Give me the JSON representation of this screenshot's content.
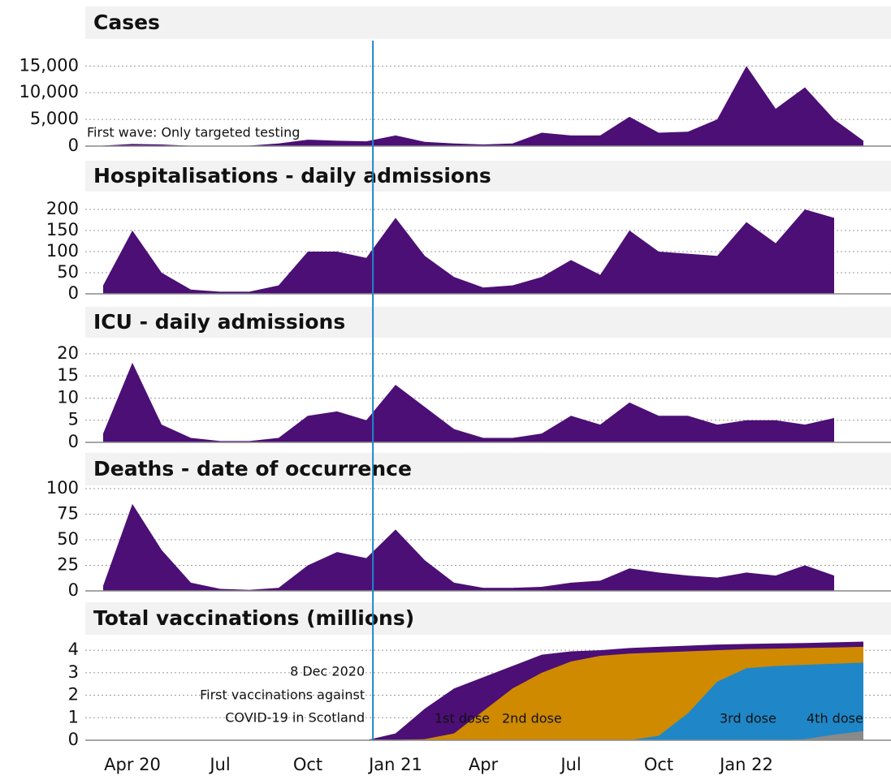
{
  "chart_data": [
    {
      "type": "area",
      "title": "Cases",
      "color": "#4b0f75",
      "x": [
        "2020-03",
        "2020-04",
        "2020-05",
        "2020-06",
        "2020-07",
        "2020-08",
        "2020-09",
        "2020-10",
        "2020-11",
        "2020-12",
        "2021-01",
        "2021-02",
        "2021-03",
        "2021-04",
        "2021-05",
        "2021-06",
        "2021-07",
        "2021-08",
        "2021-09",
        "2021-10",
        "2021-11",
        "2021-12",
        "2022-01",
        "2022-02",
        "2022-03",
        "2022-04",
        "2022-05"
      ],
      "values": [
        100,
        400,
        300,
        50,
        30,
        100,
        500,
        1200,
        1000,
        900,
        2000,
        800,
        500,
        300,
        500,
        2500,
        2000,
        2000,
        5500,
        2500,
        2700,
        5000,
        15000,
        7000,
        11000,
        5000,
        1000
      ],
      "ylim": [
        0,
        19000
      ],
      "yticks": [
        0,
        {
          "value": 5000,
          "label": "5,000"
        },
        {
          "value": 10000,
          "label": "10,000"
        },
        {
          "value": 15000,
          "label": "15,000"
        }
      ],
      "annotation": "First wave: Only targeted testing",
      "grid": true
    },
    {
      "type": "area",
      "title": "Hospitalisations - daily admissions",
      "color": "#4b0f75",
      "x": [
        "2020-03",
        "2020-04",
        "2020-05",
        "2020-06",
        "2020-07",
        "2020-08",
        "2020-09",
        "2020-10",
        "2020-11",
        "2020-12",
        "2021-01",
        "2021-02",
        "2021-03",
        "2021-04",
        "2021-05",
        "2021-06",
        "2021-07",
        "2021-08",
        "2021-09",
        "2021-10",
        "2021-11",
        "2021-12",
        "2022-01",
        "2022-02",
        "2022-03",
        "2022-04",
        "2022-05"
      ],
      "values": [
        20,
        150,
        50,
        10,
        5,
        5,
        20,
        100,
        100,
        85,
        180,
        90,
        40,
        15,
        20,
        40,
        80,
        45,
        150,
        100,
        95,
        90,
        170,
        120,
        200,
        180,
        null
      ],
      "ylim": [
        0,
        225
      ],
      "yticks": [
        0,
        50,
        100,
        150,
        200
      ],
      "grid": true
    },
    {
      "type": "area",
      "title": "ICU - daily admissions",
      "color": "#4b0f75",
      "x": [
        "2020-03",
        "2020-04",
        "2020-05",
        "2020-06",
        "2020-07",
        "2020-08",
        "2020-09",
        "2020-10",
        "2020-11",
        "2020-12",
        "2021-01",
        "2021-02",
        "2021-03",
        "2021-04",
        "2021-05",
        "2021-06",
        "2021-07",
        "2021-08",
        "2021-09",
        "2021-10",
        "2021-11",
        "2021-12",
        "2022-01",
        "2022-02",
        "2022-03",
        "2022-04",
        "2022-05"
      ],
      "values": [
        2,
        18,
        4,
        1,
        0.3,
        0.3,
        1,
        6,
        7,
        5,
        13,
        8,
        3,
        1,
        1,
        2,
        6,
        4,
        9,
        6,
        6,
        4,
        5,
        5,
        4,
        5.5,
        null
      ],
      "ylim": [
        0,
        22
      ],
      "yticks": [
        0,
        5,
        10,
        15,
        20
      ],
      "grid": true
    },
    {
      "type": "area",
      "title": "Deaths - date of occurrence",
      "color": "#4b0f75",
      "x": [
        "2020-03",
        "2020-04",
        "2020-05",
        "2020-06",
        "2020-07",
        "2020-08",
        "2020-09",
        "2020-10",
        "2020-11",
        "2020-12",
        "2021-01",
        "2021-02",
        "2021-03",
        "2021-04",
        "2021-05",
        "2021-06",
        "2021-07",
        "2021-08",
        "2021-09",
        "2021-10",
        "2021-11",
        "2021-12",
        "2022-01",
        "2022-02",
        "2022-03",
        "2022-04",
        "2022-05"
      ],
      "values": [
        5,
        85,
        40,
        8,
        2,
        1,
        3,
        25,
        38,
        32,
        60,
        30,
        8,
        3,
        3,
        4,
        8,
        10,
        22,
        18,
        15,
        13,
        18,
        15,
        25,
        15,
        null
      ],
      "ylim": [
        0,
        100
      ],
      "yticks": [
        0,
        25,
        50,
        75,
        100
      ],
      "grid": true
    },
    {
      "type": "area",
      "title": "Total vaccinations (millions)",
      "x": [
        "2020-12",
        "2021-01",
        "2021-02",
        "2021-03",
        "2021-04",
        "2021-05",
        "2021-06",
        "2021-07",
        "2021-08",
        "2021-09",
        "2021-10",
        "2021-11",
        "2021-12",
        "2022-01",
        "2022-02",
        "2022-03",
        "2022-04",
        "2022-05"
      ],
      "series": [
        {
          "name": "1st dose",
          "color": "#4b0f75",
          "values": [
            0,
            0.3,
            1.4,
            2.3,
            2.8,
            3.3,
            3.8,
            3.95,
            4.0,
            4.1,
            4.15,
            4.2,
            4.25,
            4.28,
            4.3,
            4.32,
            4.35,
            4.38
          ]
        },
        {
          "name": "2nd dose",
          "color": "#cf8a00",
          "values": [
            0,
            0.02,
            0.05,
            0.3,
            1.3,
            2.3,
            3.0,
            3.5,
            3.75,
            3.85,
            3.9,
            3.95,
            4.0,
            4.05,
            4.07,
            4.1,
            4.12,
            4.15
          ]
        },
        {
          "name": "3rd dose",
          "color": "#1f87c8",
          "values": [
            0,
            0,
            0,
            0,
            0,
            0,
            0,
            0,
            0,
            0,
            0.2,
            1.2,
            2.6,
            3.2,
            3.3,
            3.35,
            3.4,
            3.45
          ]
        },
        {
          "name": "4th dose",
          "color": "#8a8a8a",
          "values": [
            0,
            0,
            0,
            0,
            0,
            0,
            0,
            0,
            0,
            0,
            0,
            0,
            0,
            0,
            0,
            0.05,
            0.25,
            0.4
          ]
        }
      ],
      "ylim": [
        0,
        4.4
      ],
      "yticks": [
        0,
        1,
        2,
        3,
        4
      ],
      "grid": true,
      "xticks": [
        {
          "value": "2020-04",
          "label": "Apr 20"
        },
        {
          "value": "2020-07",
          "label": "Jul"
        },
        {
          "value": "2020-10",
          "label": "Oct"
        },
        {
          "value": "2021-01",
          "label": "Jan 21"
        },
        {
          "value": "2021-04",
          "label": "Apr"
        },
        {
          "value": "2021-07",
          "label": "Jul"
        },
        {
          "value": "2021-10",
          "label": "Oct"
        },
        {
          "value": "2022-01",
          "label": "Jan 22"
        }
      ],
      "marker": {
        "x": "2020-12-08",
        "label": "8 Dec 2020",
        "lines": [
          "First vaccinations against",
          "COVID-19 in Scotland"
        ]
      }
    }
  ]
}
